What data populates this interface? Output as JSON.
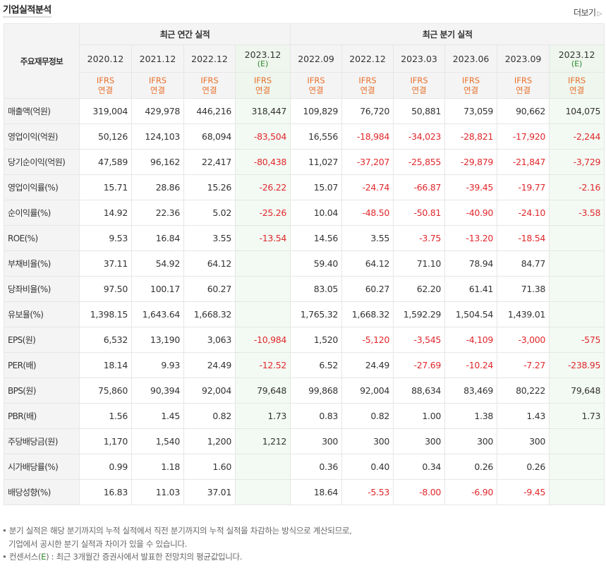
{
  "header": {
    "title": "기업실적분석",
    "more_label": "더보기",
    "more_arrow": "▷"
  },
  "table": {
    "corner": "주요재무정보",
    "groups": [
      {
        "label": "최근 연간 실적"
      },
      {
        "label": "최근 분기 실적"
      }
    ],
    "periods": [
      {
        "label": "2020.12",
        "est": ""
      },
      {
        "label": "2021.12",
        "est": ""
      },
      {
        "label": "2022.12",
        "est": ""
      },
      {
        "label": "2023.12",
        "est": "(E)"
      },
      {
        "label": "2022.09",
        "est": ""
      },
      {
        "label": "2022.12",
        "est": ""
      },
      {
        "label": "2023.03",
        "est": ""
      },
      {
        "label": "2023.06",
        "est": ""
      },
      {
        "label": "2023.09",
        "est": ""
      },
      {
        "label": "2023.12",
        "est": "(E)"
      }
    ],
    "basis_top": "IFRS",
    "basis_bottom": "연결",
    "rows": [
      {
        "label": "매출액(억원)",
        "values": [
          "319,004",
          "429,978",
          "446,216",
          "318,447",
          "109,829",
          "76,720",
          "50,881",
          "73,059",
          "90,662",
          "104,075"
        ]
      },
      {
        "label": "영업이익(억원)",
        "values": [
          "50,126",
          "124,103",
          "68,094",
          "-83,504",
          "16,556",
          "-18,984",
          "-34,023",
          "-28,821",
          "-17,920",
          "-2,244"
        ]
      },
      {
        "label": "당기순이익(억원)",
        "values": [
          "47,589",
          "96,162",
          "22,417",
          "-80,438",
          "11,027",
          "-37,207",
          "-25,855",
          "-29,879",
          "-21,847",
          "-3,729"
        ]
      },
      {
        "label": "영업이익률(%)",
        "values": [
          "15.71",
          "28.86",
          "15.26",
          "-26.22",
          "15.07",
          "-24.74",
          "-66.87",
          "-39.45",
          "-19.77",
          "-2.16"
        ]
      },
      {
        "label": "순이익률(%)",
        "values": [
          "14.92",
          "22.36",
          "5.02",
          "-25.26",
          "10.04",
          "-48.50",
          "-50.81",
          "-40.90",
          "-24.10",
          "-3.58"
        ]
      },
      {
        "label": "ROE(%)",
        "values": [
          "9.53",
          "16.84",
          "3.55",
          "-13.54",
          "14.56",
          "3.55",
          "-3.75",
          "-13.20",
          "-18.54",
          ""
        ]
      },
      {
        "label": "부채비율(%)",
        "values": [
          "37.11",
          "54.92",
          "64.12",
          "",
          "59.40",
          "64.12",
          "71.10",
          "78.94",
          "84.77",
          ""
        ]
      },
      {
        "label": "당좌비율(%)",
        "values": [
          "97.50",
          "100.17",
          "60.27",
          "",
          "83.05",
          "60.27",
          "62.20",
          "61.41",
          "71.38",
          ""
        ]
      },
      {
        "label": "유보율(%)",
        "values": [
          "1,398.15",
          "1,643.64",
          "1,668.32",
          "",
          "1,765.32",
          "1,668.32",
          "1,592.29",
          "1,504.54",
          "1,439.01",
          ""
        ]
      },
      {
        "label": "EPS(원)",
        "values": [
          "6,532",
          "13,190",
          "3,063",
          "-10,984",
          "1,520",
          "-5,120",
          "-3,545",
          "-4,109",
          "-3,000",
          "-575"
        ]
      },
      {
        "label": "PER(배)",
        "values": [
          "18.14",
          "9.93",
          "24.49",
          "-12.52",
          "6.52",
          "24.49",
          "-27.69",
          "-10.24",
          "-7.27",
          "-238.95"
        ]
      },
      {
        "label": "BPS(원)",
        "values": [
          "75,860",
          "90,394",
          "92,004",
          "79,648",
          "99,868",
          "92,004",
          "88,634",
          "83,469",
          "80,222",
          "79,648"
        ]
      },
      {
        "label": "PBR(배)",
        "values": [
          "1.56",
          "1.45",
          "0.82",
          "1.73",
          "0.83",
          "0.82",
          "1.00",
          "1.38",
          "1.43",
          "1.73"
        ]
      },
      {
        "label": "주당배당금(원)",
        "values": [
          "1,170",
          "1,540",
          "1,200",
          "1,212",
          "300",
          "300",
          "300",
          "300",
          "300",
          ""
        ]
      },
      {
        "label": "시가배당률(%)",
        "values": [
          "0.99",
          "1.18",
          "1.60",
          "",
          "0.36",
          "0.40",
          "0.34",
          "0.26",
          "0.26",
          ""
        ]
      },
      {
        "label": "배당성향(%)",
        "values": [
          "16.83",
          "11.03",
          "37.01",
          "",
          "18.64",
          "-5.53",
          "-8.00",
          "-6.90",
          "-9.45",
          ""
        ]
      }
    ]
  },
  "notes": {
    "line1": "• 분기 실적은 해당 분기까지의 누적 실적에서 직전 분기까지의 누적 실적을 차감하는 방식으로 계산되므로,",
    "line2": "기업에서 공시한 분기 실적과 차이가 있을 수 있습니다.",
    "line3_prefix": "• 컨센서스(",
    "line3_e": "E",
    "line3_suffix": ") : 최근 3개월간 증권사에서 발표한 전망치의 평균값입니다."
  },
  "colors": {
    "negative": "#e0282c",
    "basis": "#e8712c",
    "estimate": "#2a8a2a",
    "estimate_bg": "#f3faf3"
  }
}
